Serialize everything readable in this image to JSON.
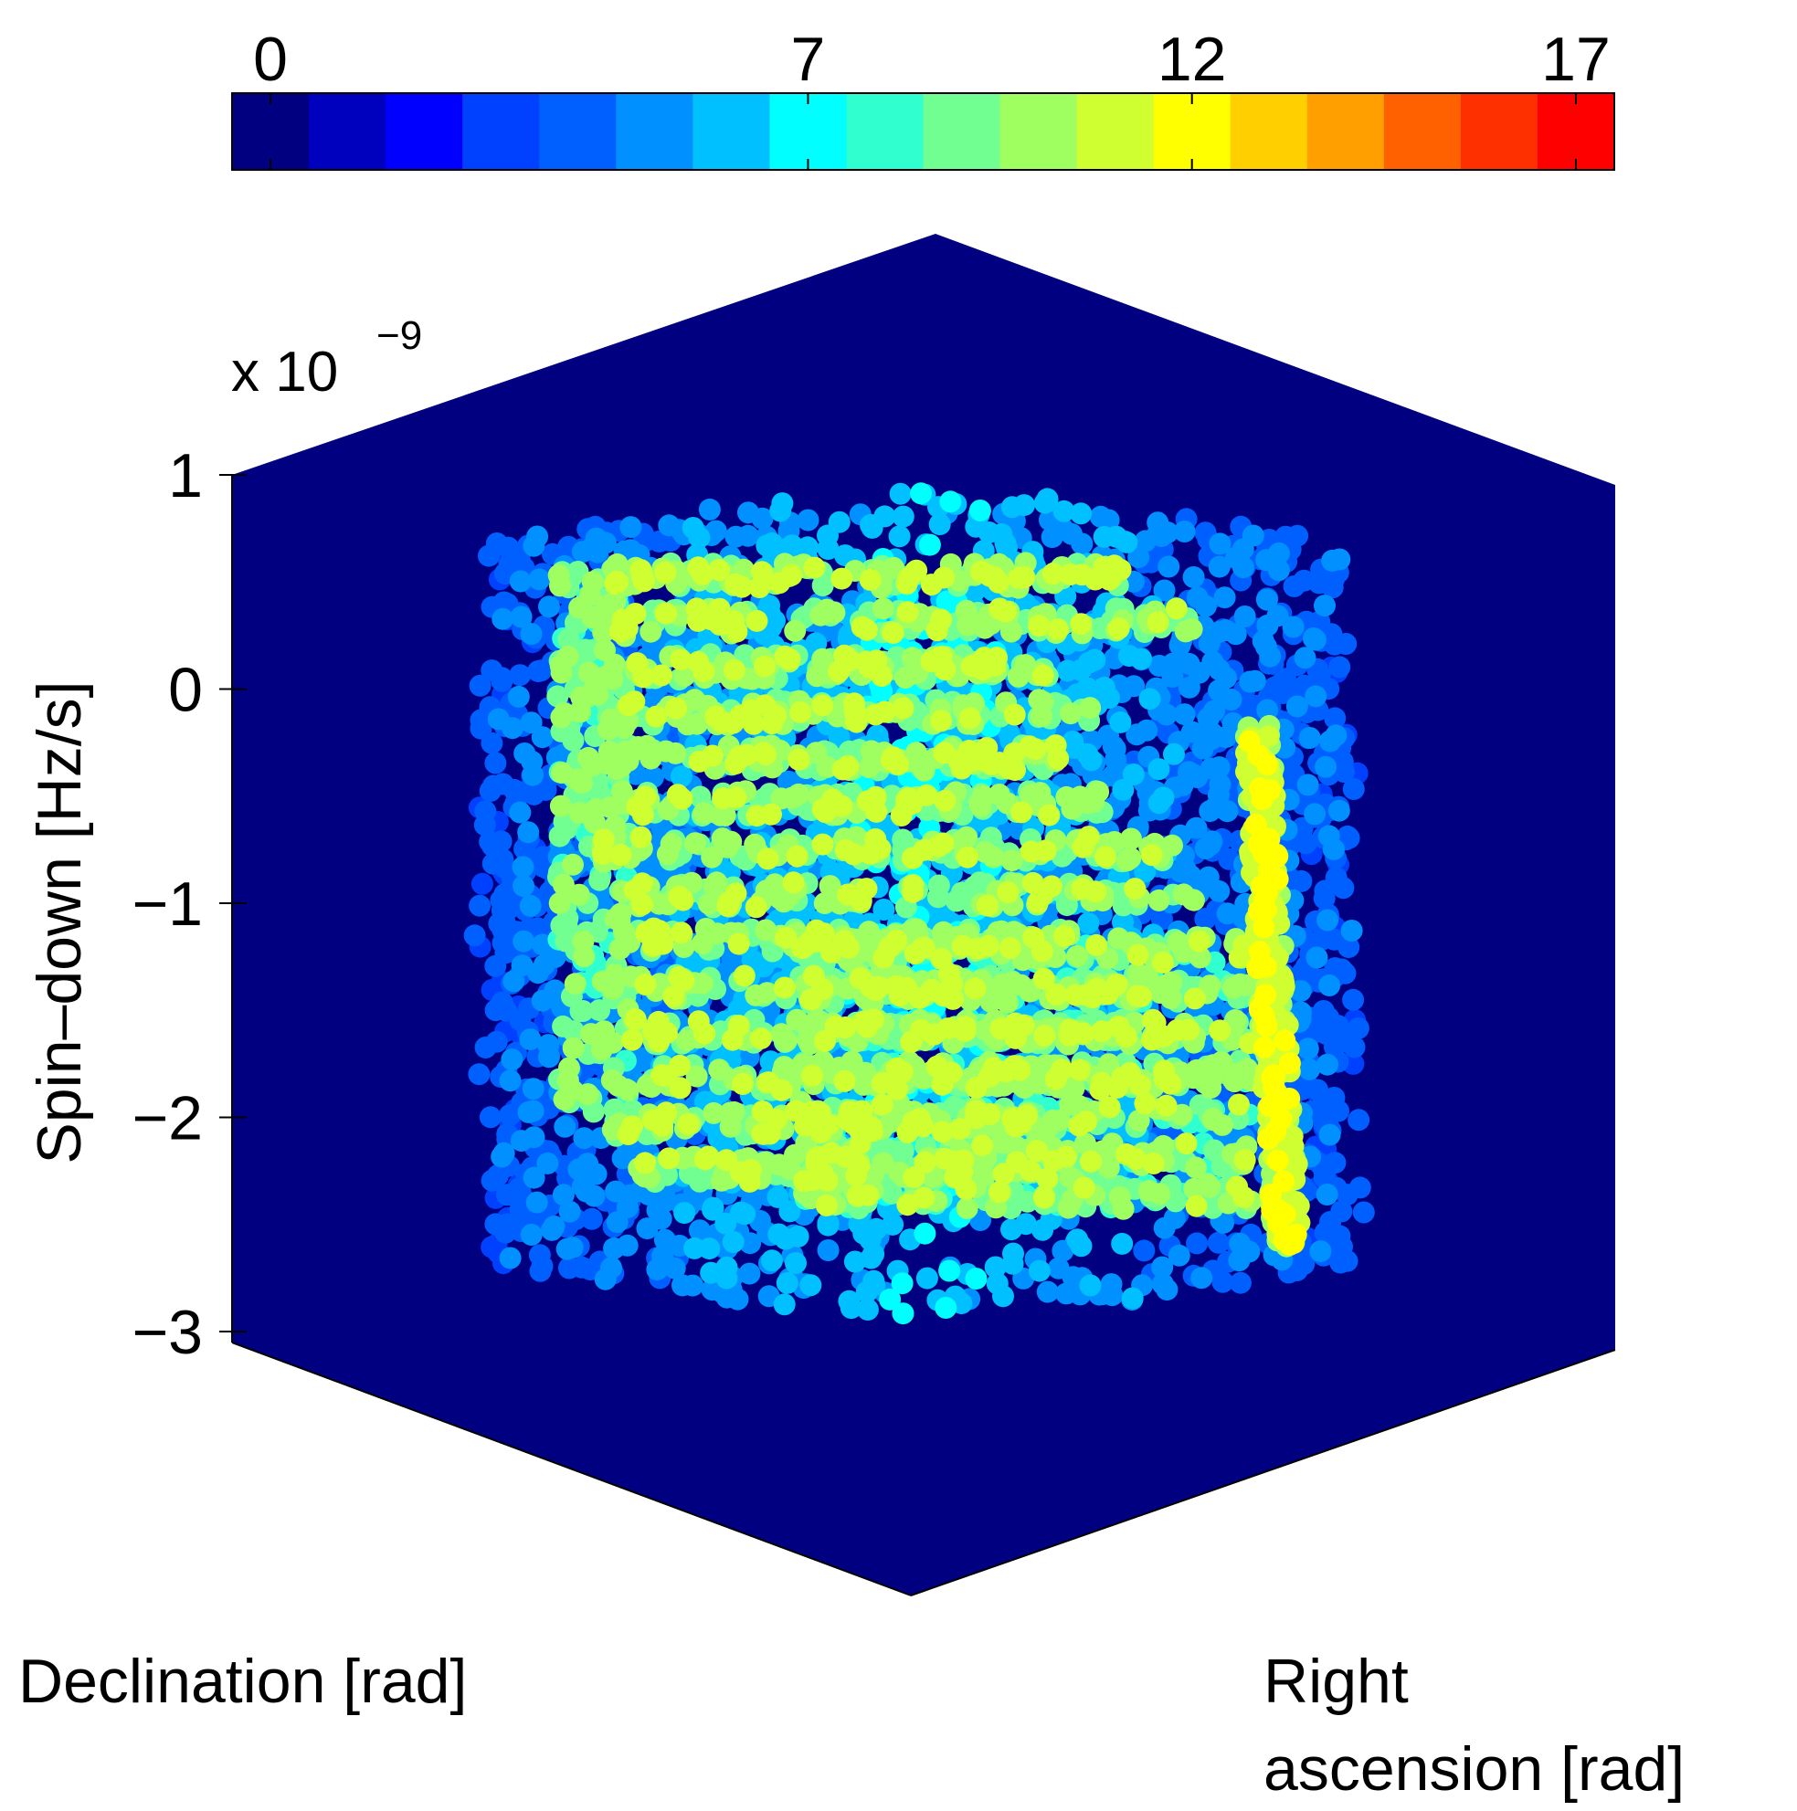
{
  "chart_data": {
    "type": "scatter",
    "projection": "3d",
    "colorbar": {
      "position": "top",
      "ticks": [
        "0",
        "7",
        "12",
        "17"
      ],
      "tick_values": [
        0,
        7,
        12,
        17
      ],
      "range": [
        -0.5,
        17.5
      ],
      "colors": [
        "#000080",
        "#0000bf",
        "#0000ff",
        "#0040ff",
        "#0060ff",
        "#0090ff",
        "#00c0ff",
        "#00ffff",
        "#30ffcf",
        "#70ff90",
        "#a0ff60",
        "#cfff30",
        "#ffff00",
        "#ffcf00",
        "#ff9f00",
        "#ff6000",
        "#ff3000",
        "#ff0000"
      ]
    },
    "z_axis": {
      "label": "Spin–down [Hz/s]",
      "exponent_prefix": "x 10",
      "exponent_power": "−9",
      "ticks": [
        "1",
        "0",
        "−1",
        "−2",
        "−3"
      ],
      "tick_values": [
        1,
        0,
        -1,
        -2,
        -3
      ],
      "range": [
        -3,
        1
      ]
    },
    "x_axis": {
      "label": "Declination [rad]"
    },
    "y_axis": {
      "label_line1": "Right",
      "label_line2": "ascension [rad]"
    },
    "background_color": "#000080",
    "grid": false,
    "points_description_values": {
      "outer_shell_range": [
        2,
        5
      ],
      "core_range": [
        6,
        11
      ]
    }
  }
}
